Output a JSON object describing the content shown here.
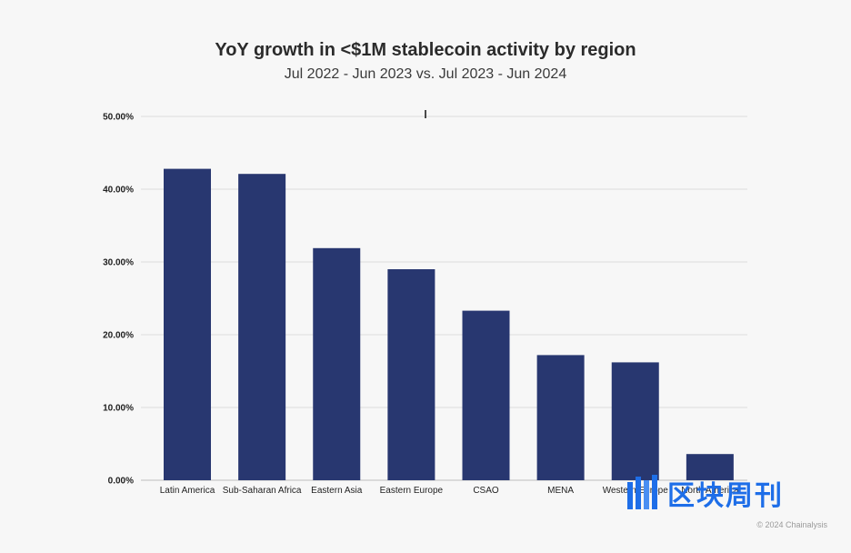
{
  "chart_data": {
    "type": "bar",
    "title": "YoY growth in <$1M stablecoin activity by region",
    "subtitle": "Jul 2022 - Jun 2023 vs. Jul 2023 - Jun 2024",
    "xlabel": "",
    "ylabel": "",
    "categories": [
      "Latin America",
      "Sub-Saharan Africa",
      "Eastern Asia",
      "Eastern Europe",
      "CSAO",
      "MENA",
      "Western Europe",
      "North America"
    ],
    "values": [
      42.8,
      42.1,
      31.9,
      29.0,
      23.3,
      17.2,
      16.2,
      3.6
    ],
    "ylim": [
      0,
      50
    ],
    "yticks": [
      "0.00%",
      "10.00%",
      "20.00%",
      "30.00%",
      "40.00%",
      "50.00%"
    ],
    "bar_color": "#283770",
    "grid": true,
    "legend": "none"
  },
  "watermark": {
    "text": "区块周刊",
    "color": "#1e6ee8"
  },
  "copyright": "© 2024 Chainalysis"
}
